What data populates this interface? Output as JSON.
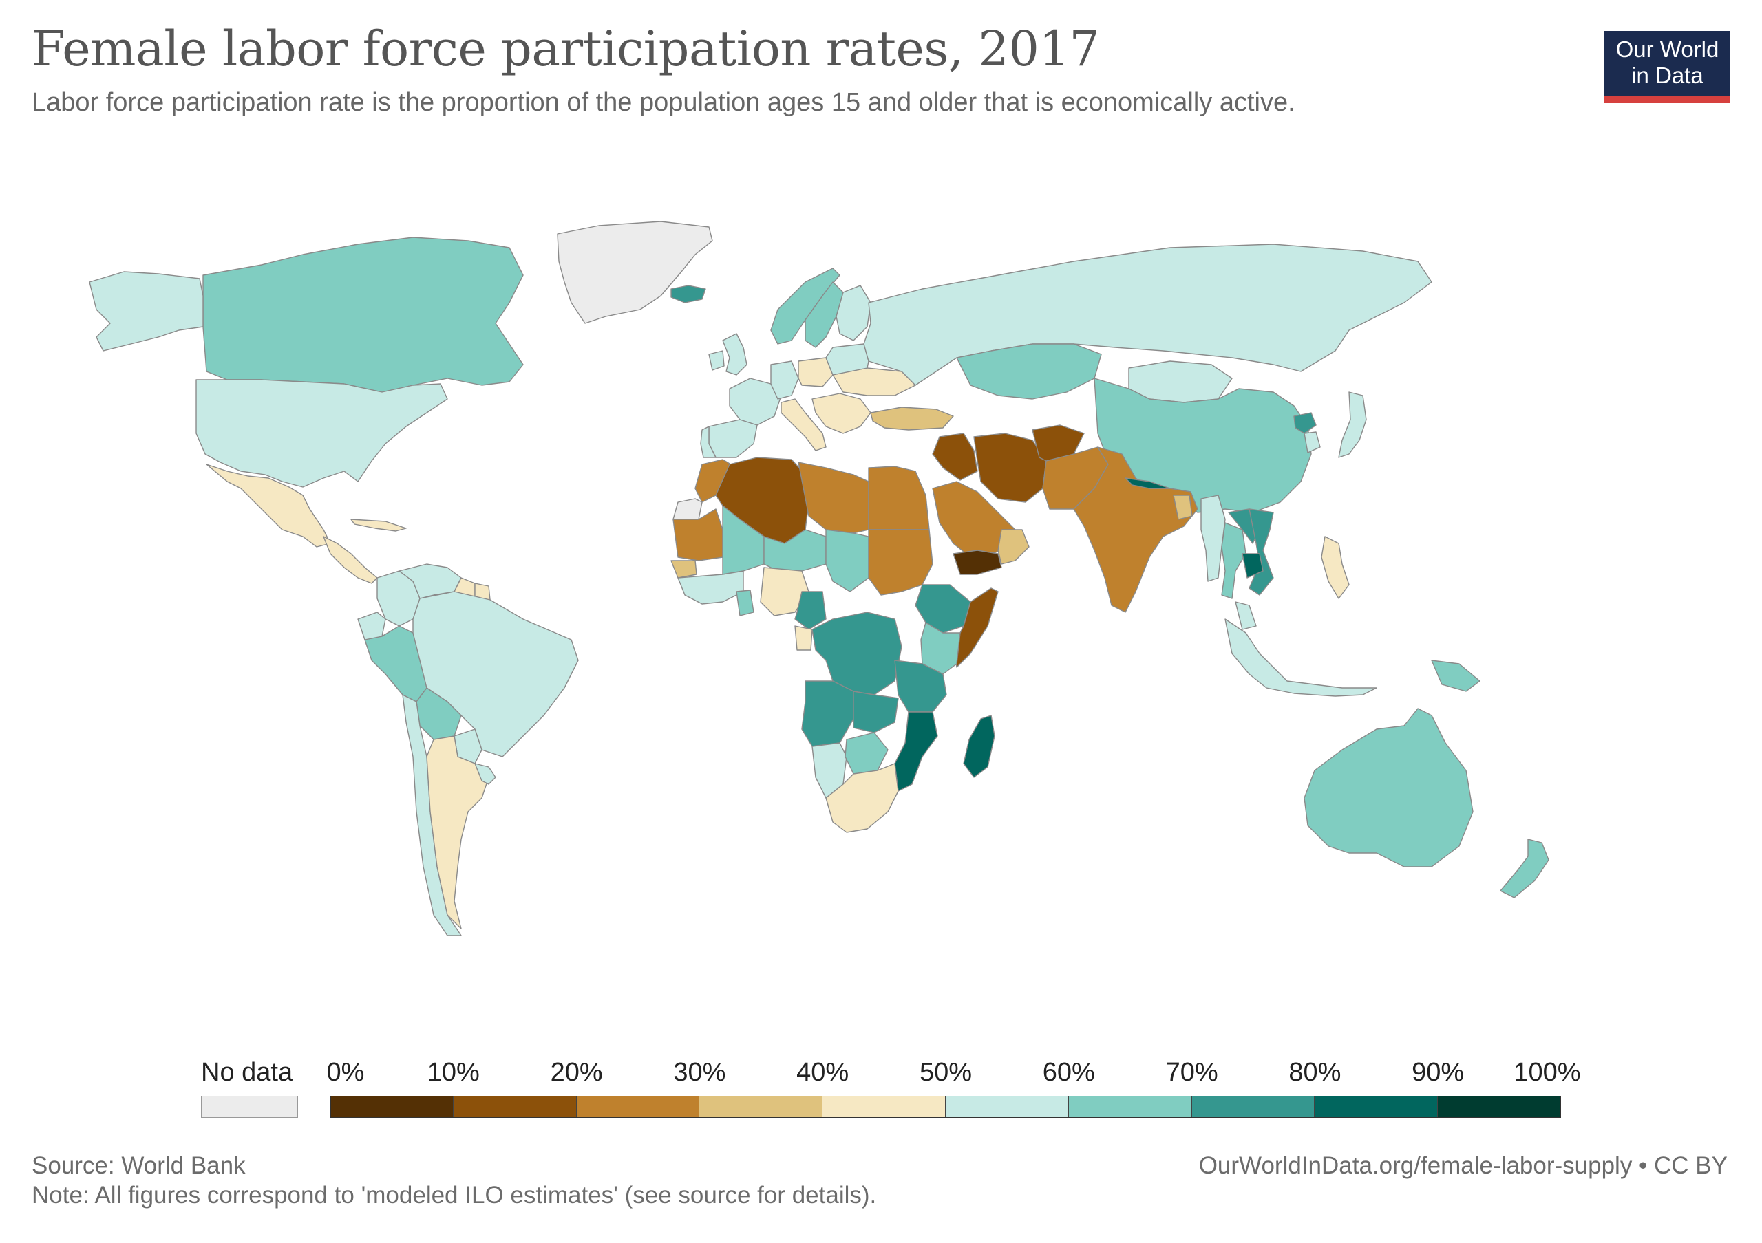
{
  "header": {
    "title": "Female labor force participation rates, 2017",
    "subtitle": "Labor force participation rate is the proportion of the population ages 15 and older that is economically active."
  },
  "logo": {
    "line1": "Our World",
    "line2": "in Data",
    "bg_color": "#1b2b4f",
    "accent_color": "#d6403e"
  },
  "legend": {
    "no_data_label": "No data",
    "no_data_color": "#ececec",
    "ticks": [
      "0%",
      "10%",
      "20%",
      "30%",
      "40%",
      "50%",
      "60%",
      "70%",
      "80%",
      "90%",
      "100%"
    ],
    "colors": [
      "#543005",
      "#8c510a",
      "#bf812d",
      "#dfc27d",
      "#f6e8c3",
      "#c7eae5",
      "#80cdc1",
      "#35978f",
      "#01665e",
      "#003c30"
    ]
  },
  "map": {
    "ocean_color": "#ffffff",
    "border_color": "#8a8a8a",
    "regions": [
      {
        "name": "Greenland",
        "value": null
      },
      {
        "name": "Canada",
        "value": 61
      },
      {
        "name": "Alaska",
        "value": 56
      },
      {
        "name": "United States",
        "value": 56
      },
      {
        "name": "Mexico",
        "value": 44
      },
      {
        "name": "Central America",
        "value": 45
      },
      {
        "name": "Cuba",
        "value": 40
      },
      {
        "name": "Colombia",
        "value": 58
      },
      {
        "name": "Venezuela",
        "value": 50
      },
      {
        "name": "Guyana",
        "value": 42
      },
      {
        "name": "Suriname",
        "value": 40
      },
      {
        "name": "Peru",
        "value": 64
      },
      {
        "name": "Ecuador",
        "value": 55
      },
      {
        "name": "Brazil",
        "value": 53
      },
      {
        "name": "Bolivia",
        "value": 61
      },
      {
        "name": "Paraguay",
        "value": 58
      },
      {
        "name": "Chile",
        "value": 51
      },
      {
        "name": "Argentina",
        "value": 48
      },
      {
        "name": "Uruguay",
        "value": 56
      },
      {
        "name": "Iceland",
        "value": 71
      },
      {
        "name": "Norway",
        "value": 61
      },
      {
        "name": "Sweden",
        "value": 61
      },
      {
        "name": "Finland",
        "value": 55
      },
      {
        "name": "United Kingdom",
        "value": 57
      },
      {
        "name": "Ireland",
        "value": 53
      },
      {
        "name": "France",
        "value": 51
      },
      {
        "name": "Spain",
        "value": 52
      },
      {
        "name": "Portugal",
        "value": 54
      },
      {
        "name": "Germany",
        "value": 55
      },
      {
        "name": "Poland",
        "value": 49
      },
      {
        "name": "Italy",
        "value": 40
      },
      {
        "name": "Balkans",
        "value": 44
      },
      {
        "name": "Ukraine",
        "value": 47
      },
      {
        "name": "Belarus",
        "value": 58
      },
      {
        "name": "Russia",
        "value": 56
      },
      {
        "name": "Turkey",
        "value": 34
      },
      {
        "name": "Kazakhstan",
        "value": 65
      },
      {
        "name": "Mongolia",
        "value": 54
      },
      {
        "name": "China",
        "value": 62
      },
      {
        "name": "Korea DPR",
        "value": 73
      },
      {
        "name": "South Korea",
        "value": 53
      },
      {
        "name": "Japan",
        "value": 51
      },
      {
        "name": "Morocco",
        "value": 25
      },
      {
        "name": "Western Sahara",
        "value": null
      },
      {
        "name": "Algeria",
        "value": 15
      },
      {
        "name": "Libya",
        "value": 27
      },
      {
        "name": "Egypt",
        "value": 22
      },
      {
        "name": "Mauritania",
        "value": 29
      },
      {
        "name": "Mali",
        "value": 61
      },
      {
        "name": "Niger",
        "value": 67
      },
      {
        "name": "Chad",
        "value": 65
      },
      {
        "name": "Sudan",
        "value": 24
      },
      {
        "name": "Senegal",
        "value": 35
      },
      {
        "name": "West Africa coast",
        "value": 55
      },
      {
        "name": "Ghana",
        "value": 63
      },
      {
        "name": "Nigeria",
        "value": 48
      },
      {
        "name": "Cameroon",
        "value": 71
      },
      {
        "name": "Ethiopia",
        "value": 73
      },
      {
        "name": "Somalia",
        "value": 19
      },
      {
        "name": "Kenya",
        "value": 62
      },
      {
        "name": "Gabon",
        "value": 44
      },
      {
        "name": "DR Congo",
        "value": 71
      },
      {
        "name": "Tanzania",
        "value": 79
      },
      {
        "name": "Angola",
        "value": 75
      },
      {
        "name": "Zambia",
        "value": 70
      },
      {
        "name": "Mozambique",
        "value": 82
      },
      {
        "name": "Madagascar",
        "value": 83
      },
      {
        "name": "Namibia",
        "value": 56
      },
      {
        "name": "Botswana",
        "value": 66
      },
      {
        "name": "South Africa",
        "value": 48
      },
      {
        "name": "Saudi Arabia",
        "value": 22
      },
      {
        "name": "Yemen",
        "value": 6
      },
      {
        "name": "Oman",
        "value": 31
      },
      {
        "name": "Iraq",
        "value": 15
      },
      {
        "name": "Iran",
        "value": 17
      },
      {
        "name": "Afghanistan",
        "value": 19
      },
      {
        "name": "Pakistan",
        "value": 24
      },
      {
        "name": "India",
        "value": 27
      },
      {
        "name": "Nepal",
        "value": 82
      },
      {
        "name": "Bangladesh",
        "value": 33
      },
      {
        "name": "Myanmar",
        "value": 51
      },
      {
        "name": "Thailand",
        "value": 60
      },
      {
        "name": "Laos",
        "value": 77
      },
      {
        "name": "Vietnam",
        "value": 73
      },
      {
        "name": "Cambodia",
        "value": 81
      },
      {
        "name": "Malaysia",
        "value": 51
      },
      {
        "name": "Indonesia",
        "value": 51
      },
      {
        "name": "Philippines",
        "value": 46
      },
      {
        "name": "Papua New Guinea",
        "value": 65
      },
      {
        "name": "Australia",
        "value": 60
      },
      {
        "name": "New Zealand",
        "value": 65
      }
    ]
  },
  "footer": {
    "source": "Source: World Bank",
    "note": "Note: All figures correspond to 'modeled ILO estimates' (see source for details).",
    "url": "OurWorldInData.org/female-labor-supply • CC BY"
  }
}
